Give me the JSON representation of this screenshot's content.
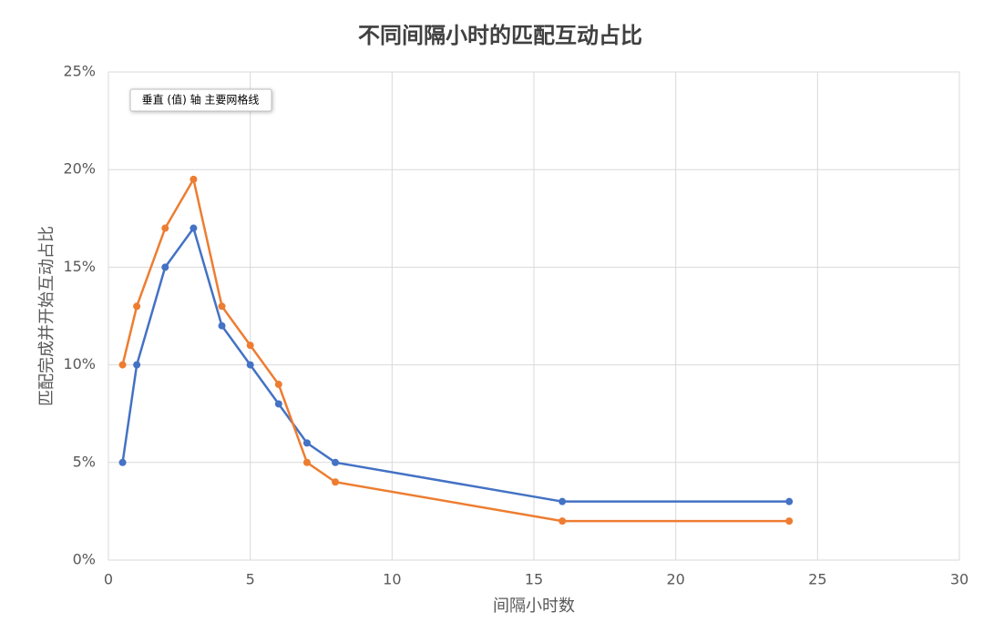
{
  "chart_data": {
    "type": "line",
    "title": "不同间隔小时的匹配互动占比",
    "x_label": "间隔小时数",
    "y_label": "匹配完成并开始互动占比",
    "annotation": "垂直 (值) 轴 主要网格线",
    "x": [
      0.5,
      1,
      2,
      3,
      4,
      5,
      6,
      7,
      8,
      16,
      24
    ],
    "series": [
      {
        "color": "#4472c4",
        "values": [
          5,
          10,
          15,
          17,
          12,
          10,
          8,
          6,
          5,
          3,
          3
        ]
      },
      {
        "color": "#ed7d31",
        "values": [
          10,
          13,
          17,
          19.5,
          13,
          11,
          9,
          5,
          4,
          2,
          2
        ]
      }
    ],
    "xlim": [
      0,
      30
    ],
    "xticks": [
      0,
      5,
      10,
      15,
      20,
      25,
      30
    ],
    "ylim": [
      0,
      25
    ],
    "yticks": [
      {
        "value": 0,
        "label": "0%"
      },
      {
        "value": 5,
        "label": "5%"
      },
      {
        "value": 10,
        "label": "10%"
      },
      {
        "value": 15,
        "label": "15%"
      },
      {
        "value": 20,
        "label": "20%"
      },
      {
        "value": 25,
        "label": "25%"
      }
    ],
    "grid": true
  }
}
